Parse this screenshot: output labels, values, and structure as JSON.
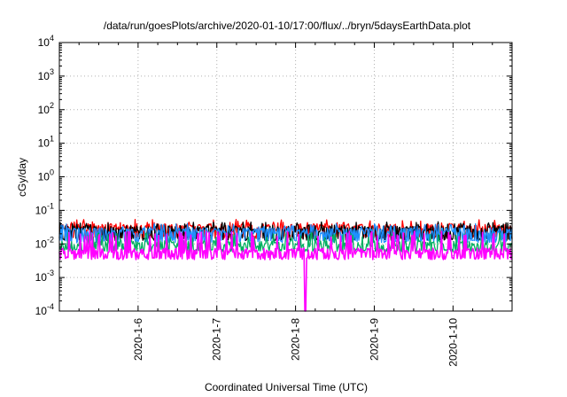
{
  "chart_data": {
    "type": "line",
    "title": "/data/run/goesPlots/archive/2020-01-10/17:00/flux/../bryn/5daysEarthData.plot",
    "xlabel": "Coordinated Universal Time (UTC)",
    "ylabel": "cGy/day",
    "yscale": "log",
    "ylim": [
      0.0001,
      10000
    ],
    "xlim_days": [
      0,
      5.75
    ],
    "grid": true,
    "legend": "none",
    "y_ticks": [
      {
        "base": "10",
        "exp": "-4",
        "value": 0.0001
      },
      {
        "base": "10",
        "exp": "-3",
        "value": 0.001
      },
      {
        "base": "10",
        "exp": "-2",
        "value": 0.01
      },
      {
        "base": "10",
        "exp": "-1",
        "value": 0.1
      },
      {
        "base": "10",
        "exp": "0",
        "value": 1
      },
      {
        "base": "10",
        "exp": "1",
        "value": 10
      },
      {
        "base": "10",
        "exp": "2",
        "value": 100
      },
      {
        "base": "10",
        "exp": "3",
        "value": 1000
      },
      {
        "base": "10",
        "exp": "4",
        "value": 10000
      }
    ],
    "x_ticks": [
      {
        "label": "2020-1-6",
        "day": 1
      },
      {
        "label": "2020-1-7",
        "day": 2
      },
      {
        "label": "2020-1-8",
        "day": 3
      },
      {
        "label": "2020-1-9",
        "day": 4
      },
      {
        "label": "2020-1-10",
        "day": 5
      }
    ],
    "series": [
      {
        "color": "#ff0000",
        "base": 0.032,
        "dip": 0.016,
        "spike": 0.045
      },
      {
        "color": "#000000",
        "base": 0.028,
        "dip": 0.014,
        "spike": 0.038
      },
      {
        "color": "#1e90ff",
        "base": 0.024,
        "dip": 0.012,
        "spike": 0.034
      },
      {
        "color": "#00b060",
        "base": 0.01,
        "dip": 0.0065,
        "spike": 0.018
      },
      {
        "color": "#ff00ff",
        "base": 0.006,
        "dip": 0.0038,
        "spike": 0.02
      }
    ],
    "annotation_dropout": {
      "day": 3.12,
      "value": 0.0001
    }
  }
}
